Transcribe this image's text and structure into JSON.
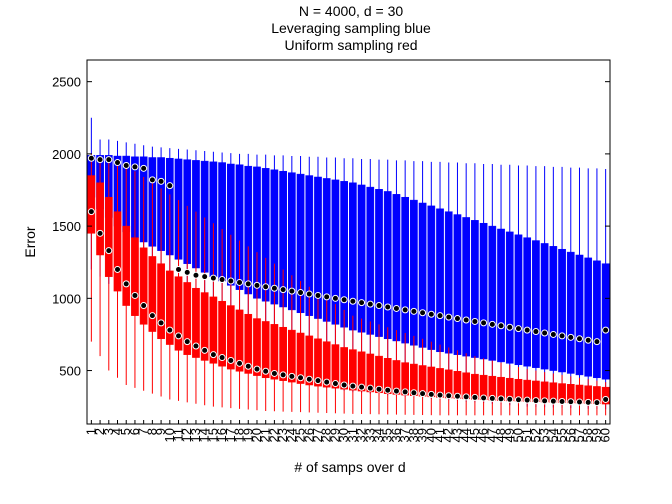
{
  "chart_data": {
    "type": "boxplot",
    "title_lines": [
      "N = 4000, d = 30",
      "Leveraging sampling blue",
      "Uniform sampling red"
    ],
    "xlabel": "# of samps over d",
    "ylabel": "Error",
    "ylim": [
      130,
      2650
    ],
    "xlim": [
      0.5,
      60.5
    ],
    "yticks": [
      500,
      1000,
      1500,
      2000,
      2500
    ],
    "x_tick_labels": [
      "1",
      "2",
      "3",
      "4",
      "5",
      "6",
      "7",
      "8",
      "9",
      "10",
      "11",
      "12",
      "13",
      "14",
      "15",
      "16",
      "17",
      "18",
      "19",
      "20",
      "21",
      "22",
      "23",
      "24",
      "25",
      "26",
      "27",
      "28",
      "29",
      "30",
      "31",
      "32",
      "33",
      "34",
      "35",
      "36",
      "37",
      "38",
      "39",
      "40",
      "41",
      "42",
      "43",
      "44",
      "45",
      "46",
      "47",
      "48",
      "49",
      "50",
      "51",
      "52",
      "53",
      "54",
      "55",
      "56",
      "57",
      "58",
      "59",
      "60"
    ],
    "grid": false,
    "series": [
      {
        "name": "Leveraging sampling",
        "color": "#0000ff",
        "box_q1": [
          1700,
          1620,
          1560,
          1500,
          1460,
          1420,
          1390,
          1360,
          1330,
          1300,
          1270,
          1240,
          1210,
          1180,
          1150,
          1120,
          1090,
          1060,
          1030,
          1000,
          980,
          960,
          940,
          920,
          900,
          880,
          860,
          840,
          820,
          800,
          780,
          765,
          750,
          735,
          720,
          705,
          690,
          675,
          660,
          645,
          630,
          620,
          610,
          600,
          590,
          580,
          570,
          560,
          550,
          540,
          530,
          520,
          510,
          500,
          490,
          480,
          470,
          460,
          450,
          440
        ],
        "box_q3": [
          1990,
          1990,
          1990,
          1985,
          1985,
          1980,
          1980,
          1975,
          1975,
          1970,
          1965,
          1960,
          1955,
          1950,
          1945,
          1940,
          1930,
          1925,
          1915,
          1910,
          1900,
          1890,
          1880,
          1870,
          1860,
          1850,
          1840,
          1830,
          1820,
          1810,
          1800,
          1785,
          1770,
          1755,
          1740,
          1720,
          1700,
          1680,
          1660,
          1640,
          1620,
          1600,
          1580,
          1560,
          1540,
          1520,
          1500,
          1480,
          1460,
          1440,
          1420,
          1400,
          1380,
          1360,
          1340,
          1320,
          1300,
          1280,
          1260,
          1240
        ],
        "whisker_low": [
          1200,
          1150,
          1100,
          1050,
          1000,
          950,
          900,
          860,
          820,
          790,
          760,
          730,
          700,
          670,
          640,
          610,
          580,
          550,
          520,
          500,
          480,
          460,
          440,
          420,
          410,
          400,
          390,
          380,
          370,
          360,
          350,
          345,
          340,
          335,
          330,
          325,
          320,
          315,
          310,
          305,
          300,
          295,
          290,
          285,
          280,
          275,
          270,
          265,
          260,
          255,
          250,
          248,
          246,
          244,
          242,
          240,
          238,
          236,
          234,
          232
        ],
        "whisker_high": [
          2250,
          2100,
          2100,
          2090,
          2080,
          2070,
          2060,
          2050,
          2045,
          2040,
          2035,
          2030,
          2025,
          2020,
          2015,
          2010,
          2005,
          2000,
          2000,
          1995,
          1995,
          1990,
          1990,
          1985,
          1985,
          1980,
          1980,
          1975,
          1975,
          1970,
          1970,
          1965,
          1965,
          1960,
          1960,
          1955,
          1955,
          1950,
          1950,
          1945,
          1945,
          1940,
          1940,
          1935,
          1935,
          1930,
          1930,
          1925,
          1925,
          1920,
          1920,
          1915,
          1915,
          1910,
          1910,
          1905,
          1905,
          1900,
          1900,
          1895
        ],
        "medians": [
          1970,
          1960,
          1960,
          1940,
          1920,
          1910,
          1900,
          1820,
          1810,
          1780,
          1200,
          1180,
          1160,
          1150,
          1140,
          1130,
          1120,
          1110,
          1100,
          1090,
          1080,
          1070,
          1060,
          1050,
          1040,
          1030,
          1020,
          1010,
          1000,
          990,
          980,
          970,
          960,
          950,
          940,
          930,
          920,
          910,
          900,
          890,
          880,
          870,
          860,
          850,
          840,
          830,
          820,
          810,
          800,
          790,
          780,
          770,
          760,
          750,
          740,
          730,
          720,
          710,
          700,
          780
        ]
      },
      {
        "name": "Uniform sampling",
        "color": "#ff0000",
        "box_q1": [
          1450,
          1300,
          1150,
          1050,
          950,
          880,
          820,
          770,
          720,
          680,
          640,
          610,
          590,
          570,
          550,
          530,
          510,
          495,
          480,
          465,
          450,
          440,
          430,
          420,
          410,
          400,
          392,
          385,
          378,
          371,
          364,
          358,
          352,
          346,
          340,
          335,
          330,
          326,
          322,
          318,
          314,
          310,
          307,
          304,
          301,
          298,
          295,
          292,
          290,
          288,
          286,
          284,
          282,
          280,
          278,
          276,
          274,
          272,
          270,
          268
        ],
        "box_q3": [
          1850,
          1800,
          1700,
          1600,
          1500,
          1420,
          1350,
          1290,
          1240,
          1190,
          1150,
          1110,
          1070,
          1040,
          1010,
          980,
          950,
          920,
          890,
          860,
          840,
          820,
          800,
          780,
          760,
          740,
          720,
          700,
          680,
          660,
          645,
          630,
          615,
          600,
          585,
          570,
          555,
          545,
          535,
          525,
          515,
          505,
          495,
          485,
          475,
          468,
          461,
          454,
          447,
          440,
          434,
          428,
          422,
          416,
          410,
          405,
          400,
          395,
          390,
          385
        ],
        "whisker_low": [
          700,
          600,
          500,
          450,
          400,
          380,
          360,
          340,
          320,
          300,
          290,
          280,
          270,
          260,
          250,
          245,
          240,
          235,
          230,
          225,
          220,
          218,
          216,
          214,
          212,
          210,
          208,
          206,
          204,
          202,
          200,
          199,
          198,
          197,
          196,
          195,
          194,
          193,
          192,
          191,
          190,
          190,
          190,
          190,
          190,
          190,
          190,
          190,
          190,
          190,
          190,
          190,
          190,
          190,
          190,
          190,
          190,
          190,
          190,
          190
        ],
        "whisker_high": [
          2000,
          1980,
          1960,
          1940,
          1920,
          1880,
          1840,
          1800,
          1760,
          1720,
          1680,
          1640,
          1600,
          1560,
          1520,
          1480,
          1440,
          1400,
          1360,
          1320,
          1280,
          1240,
          1200,
          1160,
          1120,
          1080,
          1040,
          1000,
          960,
          920,
          880,
          860,
          840,
          820,
          800,
          780,
          760,
          740,
          720,
          700,
          680,
          660,
          640,
          620,
          600,
          585,
          570,
          555,
          540,
          525,
          510,
          500,
          490,
          480,
          470,
          460,
          450,
          440,
          430,
          420
        ],
        "medians": [
          1600,
          1450,
          1330,
          1200,
          1100,
          1020,
          950,
          880,
          830,
          780,
          740,
          700,
          670,
          640,
          610,
          590,
          570,
          550,
          530,
          510,
          495,
          480,
          470,
          460,
          450,
          440,
          430,
          420,
          410,
          400,
          392,
          385,
          378,
          371,
          364,
          358,
          352,
          346,
          340,
          335,
          330,
          326,
          322,
          318,
          314,
          310,
          307,
          304,
          301,
          298,
          295,
          292,
          290,
          288,
          286,
          284,
          282,
          280,
          278,
          300
        ]
      }
    ]
  }
}
